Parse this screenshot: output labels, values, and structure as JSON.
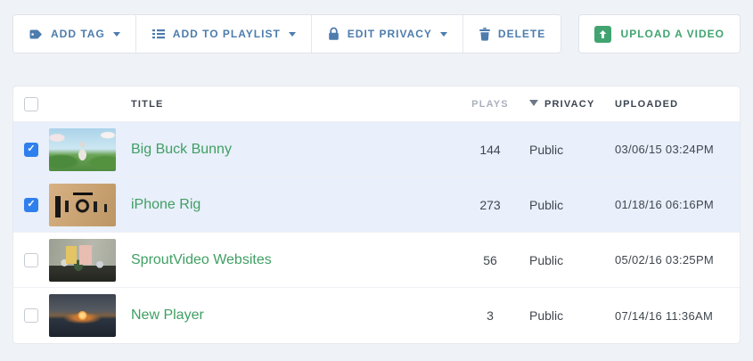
{
  "toolbar": {
    "buttons": [
      {
        "label": "ADD TAG",
        "icon": "tag-icon",
        "dropdown": true
      },
      {
        "label": "ADD TO PLAYLIST",
        "icon": "list-icon",
        "dropdown": true
      },
      {
        "label": "EDIT PRIVACY",
        "icon": "lock-icon",
        "dropdown": true
      },
      {
        "label": "DELETE",
        "icon": "trash-icon",
        "dropdown": false
      }
    ],
    "upload_button": {
      "label": "UPLOAD A VIDEO",
      "icon": "upload-arrow-icon"
    }
  },
  "colors": {
    "accent_blue": "#4d7cad",
    "accent_green": "#41a470",
    "link_green": "#3f9f63",
    "selected_row": "#e9effb",
    "checkbox_checked": "#2f80ed",
    "page_background": "#eff2f7"
  },
  "table": {
    "columns": [
      {
        "key": "title",
        "label": "TITLE"
      },
      {
        "key": "plays",
        "label": "PLAYS"
      },
      {
        "key": "privacy",
        "label": "PRIVACY",
        "sorted": "desc"
      },
      {
        "key": "uploaded",
        "label": "UPLOADED"
      }
    ],
    "rows": [
      {
        "title": "Big Buck Bunny",
        "plays": "144",
        "privacy": "Public",
        "uploaded": "03/06/15 03:24PM",
        "checked": true,
        "thumb": "bunny",
        "thumb_alt": "bunny in green meadow under blue sky"
      },
      {
        "title": "iPhone Rig",
        "plays": "273",
        "privacy": "Public",
        "uploaded": "01/18/16 06:16PM",
        "checked": true,
        "thumb": "rig",
        "thumb_alt": "black rig parts laid out on wood table"
      },
      {
        "title": "SproutVideo Websites",
        "plays": "56",
        "privacy": "Public",
        "uploaded": "05/02/16 03:25PM",
        "checked": false,
        "thumb": "office",
        "thumb_alt": "two people meeting in an office"
      },
      {
        "title": "New Player",
        "plays": "3",
        "privacy": "Public",
        "uploaded": "07/14/16 11:36AM",
        "checked": false,
        "thumb": "sunset",
        "thumb_alt": "sunset over water"
      }
    ]
  }
}
